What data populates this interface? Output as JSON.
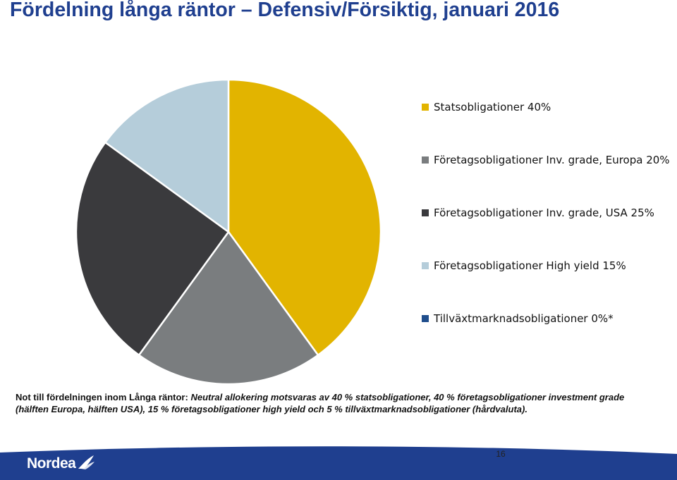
{
  "title": "Fördelning långa räntor – Defensiv/Försiktig, januari 2016",
  "chart_data": {
    "type": "pie",
    "title": "",
    "slices": [
      {
        "label": "Statsobligationer 40%",
        "value": 40,
        "color": "#e2b400"
      },
      {
        "label": "Företagsobligationer Inv. grade, Europa 20%",
        "value": 20,
        "color": "#7a7d7f"
      },
      {
        "label": "Företagsobligationer Inv. grade, USA 25%",
        "value": 25,
        "color": "#3a3a3d"
      },
      {
        "label": "Företagsobligationer High yield 15%",
        "value": 15,
        "color": "#b5cdda"
      },
      {
        "label": "Tillväxtmarknadsobligationer 0%*",
        "value": 0,
        "color": "#1f4e8c"
      }
    ],
    "legend_position": "right"
  },
  "note": {
    "lead": "Not till fördelningen inom Långa räntor:",
    "line1": "Neutral allokering motsvaras av 40 % statsobligationer, 40 % företagsobligationer investment grade",
    "line2": "(hälften Europa, hälften USA), 15 % företagsobligationer high yield och 5 % tillväxtmarknadsobligationer (hårdvaluta)."
  },
  "footer": {
    "page_number": "16",
    "logo_text": "Nordea",
    "band_color": "#1f3f8f"
  }
}
